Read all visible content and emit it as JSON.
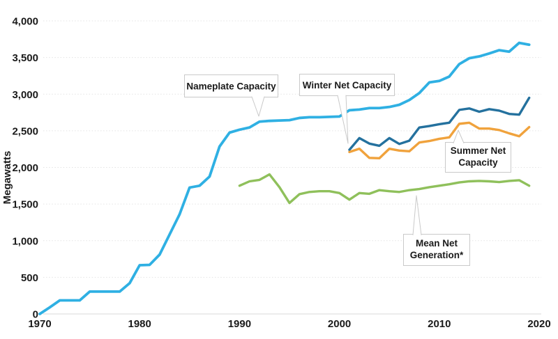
{
  "y_axis": {
    "label": "Megawatts",
    "tick_values": [
      0,
      500,
      1000,
      1500,
      2000,
      2500,
      3000,
      3500,
      4000
    ],
    "tick_labels": [
      "0",
      "500",
      "1,000",
      "1,500",
      "2,000",
      "2,500",
      "3,000",
      "3,500",
      "4,000"
    ]
  },
  "x_axis": {
    "tick_values": [
      1970,
      1980,
      1990,
      2000,
      2010,
      2020
    ]
  },
  "chart_data": {
    "type": "line",
    "title": "",
    "xlabel": "",
    "ylabel": "Megawatts",
    "unit": "megawatts",
    "xlim": [
      1970,
      2020
    ],
    "ylim": [
      0,
      4000
    ],
    "grid": "horizontal-dotted",
    "background": "#ffffff",
    "grid_color": "#e3e3e3",
    "text_color": "#1a1a1a",
    "legend": "inline-callout-labels",
    "series": [
      {
        "name": "Nameplate Capacity",
        "color": "#2FB0E3",
        "stroke_width": 3.8,
        "start_year": 1970,
        "end_year": 2019,
        "values": [
          0,
          90,
          185,
          185,
          185,
          305,
          305,
          305,
          305,
          420,
          665,
          670,
          810,
          1085,
          1360,
          1725,
          1750,
          1875,
          2285,
          2475,
          2515,
          2545,
          2625,
          2635,
          2640,
          2645,
          2675,
          2685,
          2685,
          2690,
          2695,
          2780,
          2790,
          2810,
          2810,
          2825,
          2855,
          2920,
          3015,
          3160,
          3180,
          3240,
          3410,
          3490,
          3515,
          3555,
          3600,
          3580,
          3700,
          3675
        ]
      },
      {
        "name": "Winter Net Capacity",
        "color": "#24719E",
        "stroke_width": 3.4,
        "start_year": 2001,
        "end_year": 2019,
        "values": [
          2240,
          2400,
          2325,
          2295,
          2400,
          2320,
          2365,
          2545,
          2565,
          2590,
          2610,
          2785,
          2805,
          2760,
          2795,
          2775,
          2730,
          2720,
          2950
        ]
      },
      {
        "name": "Summer Net Capacity",
        "color": "#F0A23C",
        "stroke_width": 3.4,
        "start_year": 2001,
        "end_year": 2019,
        "values": [
          2210,
          2255,
          2130,
          2125,
          2255,
          2230,
          2220,
          2340,
          2360,
          2390,
          2410,
          2595,
          2610,
          2530,
          2530,
          2510,
          2465,
          2425,
          2550
        ]
      },
      {
        "name": "Mean Net Generation*",
        "color": "#8FC05B",
        "stroke_width": 3.4,
        "start_year": 1990,
        "end_year": 2019,
        "values": [
          1750,
          1810,
          1830,
          1905,
          1730,
          1515,
          1635,
          1665,
          1675,
          1675,
          1650,
          1560,
          1650,
          1640,
          1690,
          1675,
          1665,
          1690,
          1705,
          1730,
          1750,
          1770,
          1795,
          1810,
          1815,
          1810,
          1800,
          1815,
          1825,
          1750
        ]
      }
    ],
    "annotations": [
      {
        "series": "Nameplate Capacity",
        "label": "Nameplate Capacity",
        "line1": "Nameplate Capacity"
      },
      {
        "series": "Winter Net Capacity",
        "label": "Winter Net Capacity",
        "line1": "Winter Net Capacity"
      },
      {
        "series": "Summer Net Capacity",
        "label": "Summer Net Capacity",
        "line1": "Summer Net",
        "line2": "Capacity"
      },
      {
        "series": "Mean Net Generation*",
        "label": "Mean Net Generation*",
        "line1": "Mean Net",
        "line2": "Generation*"
      }
    ]
  }
}
